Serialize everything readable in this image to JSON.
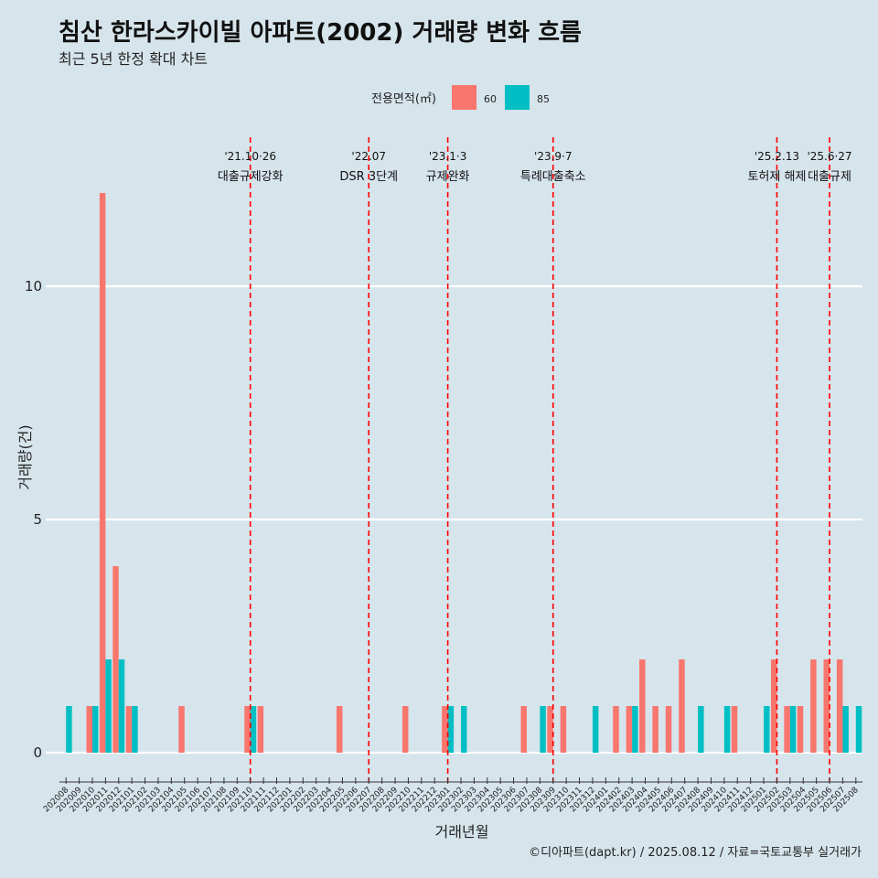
{
  "chart_data": {
    "type": "bar",
    "title": "침산 한라스카이빌 아파트(2002) 거래량 변화 흐름",
    "subtitle": "최근 5년 한정 확대 차트",
    "xlabel": "거래년월",
    "ylabel": "거래량(건)",
    "ylim": [
      -0.5,
      12.5
    ],
    "yticks": [
      0,
      5,
      10
    ],
    "grid": "horizontal",
    "legend": {
      "title": "전용면적(㎡)",
      "position": "top"
    },
    "caption": "©디아파트(dapt.kr) / 2025.08.12 / 자료=국토교통부 실거래가",
    "categories": [
      "202008",
      "202009",
      "202010",
      "202011",
      "202012",
      "202101",
      "202102",
      "202103",
      "202104",
      "202105",
      "202106",
      "202107",
      "202108",
      "202109",
      "202110",
      "202111",
      "202112",
      "202201",
      "202202",
      "202203",
      "202204",
      "202205",
      "202206",
      "202207",
      "202208",
      "202209",
      "202210",
      "202211",
      "202212",
      "202301",
      "202302",
      "202303",
      "202304",
      "202305",
      "202306",
      "202307",
      "202308",
      "202309",
      "202310",
      "202311",
      "202312",
      "202401",
      "202402",
      "202403",
      "202404",
      "202405",
      "202406",
      "202407",
      "202408",
      "202409",
      "202410",
      "202411",
      "202412",
      "202501",
      "202502",
      "202503",
      "202504",
      "202505",
      "202506",
      "202507",
      "202508"
    ],
    "series": [
      {
        "name": "60",
        "color": "#f8766d",
        "values": [
          0,
          0,
          1,
          12,
          4,
          1,
          0,
          0,
          0,
          1,
          0,
          0,
          0,
          0,
          1,
          1,
          0,
          0,
          0,
          0,
          0,
          1,
          0,
          0,
          0,
          0,
          1,
          0,
          0,
          1,
          0,
          0,
          0,
          0,
          0,
          1,
          0,
          1,
          1,
          0,
          0,
          0,
          1,
          1,
          2,
          1,
          1,
          2,
          0,
          0,
          0,
          1,
          0,
          0,
          2,
          1,
          1,
          2,
          2,
          2,
          0
        ]
      },
      {
        "name": "85",
        "color": "#00bfc4",
        "values": [
          1,
          0,
          1,
          2,
          2,
          1,
          0,
          0,
          0,
          0,
          0,
          0,
          0,
          0,
          1,
          0,
          0,
          0,
          0,
          0,
          0,
          0,
          0,
          0,
          0,
          0,
          0,
          0,
          0,
          1,
          1,
          0,
          0,
          0,
          0,
          0,
          1,
          0,
          0,
          0,
          1,
          0,
          0,
          1,
          0,
          0,
          0,
          0,
          1,
          0,
          1,
          0,
          0,
          1,
          0,
          1,
          0,
          0,
          0,
          1,
          1
        ]
      }
    ],
    "events": [
      {
        "category": "202110",
        "date": "'21.10·26",
        "name": "대출규제강화"
      },
      {
        "category": "202207",
        "date": "'22.07",
        "name": "DSR 3단계"
      },
      {
        "category": "202301",
        "date": "'23.1·3",
        "name": "규제완화"
      },
      {
        "category": "202309",
        "date": "'23.9·7",
        "name": "특례대출축소"
      },
      {
        "category": "202502",
        "date": "'25.2.13",
        "name": "토허제 해제"
      },
      {
        "category": "202506",
        "date": "'25.6·27",
        "name": "대출규제"
      }
    ],
    "event_line_color": "#ff0000"
  }
}
